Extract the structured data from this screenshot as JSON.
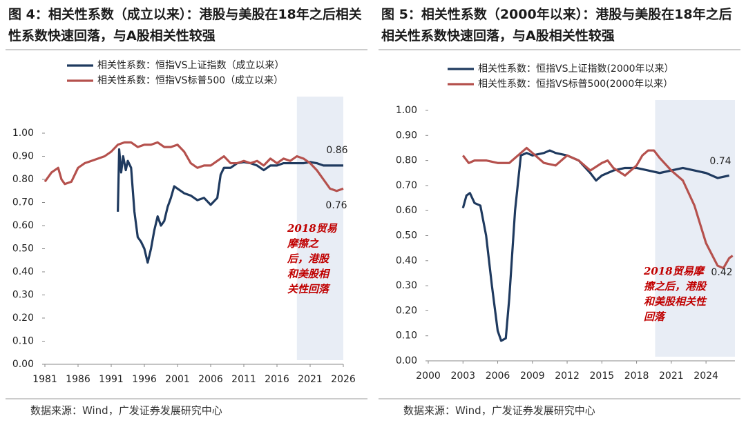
{
  "chart_data": [
    {
      "type": "line",
      "title": "图 4：相关性系数（成立以来）：港股与美股在18年之后相关性系数快速回落，与A股相关性较强",
      "source": "数据来源：Wind，广发证券发展研究中心",
      "xlim": [
        1981,
        2026
      ],
      "xticks": [
        1981,
        1986,
        1991,
        1996,
        2001,
        2006,
        2011,
        2016,
        2021,
        2026
      ],
      "ylim": [
        0,
        1
      ],
      "yticks": [
        {
          "value": 0,
          "label": "0.00"
        },
        {
          "value": 0.1,
          "label": "0.10"
        },
        {
          "value": 0.2,
          "label": "0.20"
        },
        {
          "value": 0.3,
          "label": "0.30"
        },
        {
          "value": 0.4,
          "label": "0.40"
        },
        {
          "value": 0.5,
          "label": "0.50"
        },
        {
          "value": 0.6,
          "label": "0.60"
        },
        {
          "value": 0.7,
          "label": "0.70"
        },
        {
          "value": 0.8,
          "label": "0.80"
        },
        {
          "value": 0.9,
          "label": "0.90"
        },
        {
          "value": 1,
          "label": "1.00"
        }
      ],
      "shaded_region": [
        2019,
        2026
      ],
      "shade_color": "#e8edf5",
      "annotations": [
        "0.86",
        "0.76"
      ],
      "note": "2018贸易摩擦之后，港股和美股相关性回落",
      "series": [
        {
          "name": "相关性系数：恒指VS上证指数（成立以来）",
          "color": "#1f3a5f",
          "x": [
            1992,
            1992.2,
            1992.5,
            1992.8,
            1993.2,
            1993.5,
            1994,
            1994.5,
            1995,
            1995.5,
            1996,
            1996.5,
            1997,
            1997.5,
            1998,
            1998.5,
            1999,
            1999.5,
            2000,
            2000.5,
            2001,
            2002,
            2003,
            2004,
            2005,
            2006,
            2007,
            2007.5,
            2008,
            2009,
            2010,
            2011,
            2012,
            2013,
            2014,
            2015,
            2016,
            2017,
            2018,
            2019,
            2020,
            2021,
            2022,
            2023,
            2024,
            2025,
            2026
          ],
          "values": [
            0.66,
            0.93,
            0.83,
            0.9,
            0.84,
            0.88,
            0.85,
            0.66,
            0.55,
            0.53,
            0.5,
            0.44,
            0.5,
            0.58,
            0.64,
            0.6,
            0.62,
            0.68,
            0.72,
            0.77,
            0.76,
            0.74,
            0.73,
            0.71,
            0.72,
            0.69,
            0.72,
            0.82,
            0.85,
            0.85,
            0.87,
            0.875,
            0.87,
            0.86,
            0.84,
            0.86,
            0.86,
            0.87,
            0.87,
            0.87,
            0.87,
            0.875,
            0.87,
            0.86,
            0.86,
            0.86,
            0.86
          ]
        },
        {
          "name": "相关性系数：恒指VS标普500（成立以来）",
          "color": "#b5514d",
          "x": [
            1981,
            1982,
            1983,
            1983.5,
            1984,
            1985,
            1986,
            1987,
            1988,
            1989,
            1990,
            1991,
            1992,
            1993,
            1994,
            1995,
            1996,
            1997,
            1998,
            1999,
            2000,
            2001,
            2002,
            2003,
            2004,
            2005,
            2006,
            2007,
            2008,
            2009,
            2010,
            2011,
            2012,
            2013,
            2014,
            2015,
            2016,
            2017,
            2018,
            2019,
            2020,
            2021,
            2022,
            2023,
            2024,
            2025,
            2026
          ],
          "values": [
            0.79,
            0.83,
            0.85,
            0.8,
            0.78,
            0.79,
            0.85,
            0.87,
            0.88,
            0.89,
            0.9,
            0.92,
            0.95,
            0.96,
            0.96,
            0.94,
            0.95,
            0.95,
            0.96,
            0.94,
            0.94,
            0.95,
            0.92,
            0.87,
            0.85,
            0.86,
            0.86,
            0.88,
            0.9,
            0.87,
            0.87,
            0.88,
            0.87,
            0.88,
            0.86,
            0.89,
            0.87,
            0.89,
            0.88,
            0.9,
            0.89,
            0.87,
            0.84,
            0.8,
            0.76,
            0.75,
            0.76
          ]
        }
      ]
    },
    {
      "type": "line",
      "title": "图 5：相关性系数（2000年以来）：港股与美股在18年之后相关性系数快速回落，与A股相关性较强",
      "source": "数据来源：Wind，广发证券发展研究中心",
      "xlim": [
        2000,
        2026.5
      ],
      "xticks": [
        2000,
        2003,
        2006,
        2009,
        2012,
        2015,
        2018,
        2021,
        2024
      ],
      "ylim": [
        0,
        1
      ],
      "yticks": [
        {
          "value": 0,
          "label": "0.00"
        },
        {
          "value": 0.1,
          "label": "0.10"
        },
        {
          "value": 0.2,
          "label": "0.20"
        },
        {
          "value": 0.3,
          "label": "0.30"
        },
        {
          "value": 0.4,
          "label": "0.40"
        },
        {
          "value": 0.5,
          "label": "0.50"
        },
        {
          "value": 0.6,
          "label": "0.60"
        },
        {
          "value": 0.7,
          "label": "0.70"
        },
        {
          "value": 0.8,
          "label": "0.80"
        },
        {
          "value": 0.9,
          "label": "0.90"
        },
        {
          "value": 1,
          "label": "1.00"
        }
      ],
      "shaded_region": [
        2019.6,
        2026.5
      ],
      "shade_color": "#e8edf5",
      "annotations": [
        "0.74",
        "0.42"
      ],
      "note": "2018贸易摩擦之后，港股和美股相关性回落",
      "series": [
        {
          "name": "相关性系数：恒指VS上证指数(2000年以来）",
          "color": "#1f3a5f",
          "x": [
            2003,
            2003.3,
            2003.6,
            2004,
            2004.5,
            2005,
            2005.5,
            2006,
            2006.3,
            2006.7,
            2007,
            2007.5,
            2008,
            2008.5,
            2009,
            2010,
            2010.5,
            2011,
            2012,
            2013,
            2014,
            2014.5,
            2015,
            2016,
            2017,
            2018,
            2019,
            2020,
            2021,
            2022,
            2023,
            2024,
            2025,
            2026
          ],
          "values": [
            0.61,
            0.66,
            0.67,
            0.63,
            0.62,
            0.5,
            0.3,
            0.12,
            0.08,
            0.09,
            0.25,
            0.6,
            0.82,
            0.83,
            0.82,
            0.83,
            0.84,
            0.83,
            0.82,
            0.8,
            0.75,
            0.72,
            0.74,
            0.76,
            0.77,
            0.77,
            0.76,
            0.75,
            0.76,
            0.77,
            0.76,
            0.75,
            0.73,
            0.74
          ]
        },
        {
          "name": "相关性系数：恒指VS标普500(2000年以来）",
          "color": "#b5514d",
          "x": [
            2003,
            2003.5,
            2004,
            2005,
            2006,
            2007,
            2008,
            2008.5,
            2009,
            2010,
            2011,
            2012,
            2013,
            2014,
            2015,
            2015.5,
            2016,
            2017,
            2018,
            2018.5,
            2019,
            2019.5,
            2020,
            2021,
            2022,
            2023,
            2024,
            2025,
            2025.5,
            2026,
            2026.3
          ],
          "values": [
            0.82,
            0.79,
            0.8,
            0.8,
            0.79,
            0.79,
            0.83,
            0.85,
            0.83,
            0.79,
            0.78,
            0.82,
            0.8,
            0.76,
            0.79,
            0.8,
            0.77,
            0.74,
            0.78,
            0.82,
            0.84,
            0.84,
            0.81,
            0.76,
            0.72,
            0.62,
            0.47,
            0.38,
            0.37,
            0.41,
            0.42
          ]
        }
      ]
    }
  ]
}
